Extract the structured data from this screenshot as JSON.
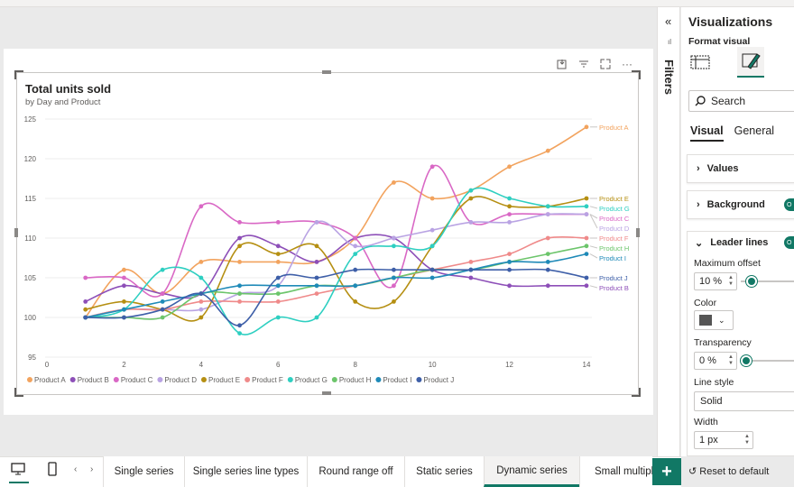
{
  "chart_data": {
    "type": "line",
    "title": "Total units sold",
    "subtitle": "by Day and Product",
    "x": [
      1,
      2,
      3,
      4,
      5,
      6,
      7,
      8,
      9,
      10,
      11,
      12,
      13,
      14
    ],
    "xticks": [
      0,
      2,
      4,
      6,
      8,
      10,
      12,
      14
    ],
    "yticks": [
      95,
      100,
      105,
      110,
      115,
      120,
      125
    ],
    "xlim": [
      0,
      14
    ],
    "ylim": [
      95,
      125
    ],
    "grid": "horizontal",
    "legend_position": "bottom",
    "series": [
      {
        "name": "Product A",
        "color": "#f2a35e",
        "values": [
          100,
          106,
          103,
          107,
          107,
          107,
          107,
          110,
          117,
          115,
          116,
          119,
          121,
          124
        ]
      },
      {
        "name": "Product B",
        "color": "#8d4fb8",
        "values": [
          102,
          104,
          103,
          103,
          110,
          109,
          107,
          110,
          110,
          106,
          105,
          104,
          104,
          104
        ]
      },
      {
        "name": "Product C",
        "color": "#d968c5",
        "values": [
          105,
          105,
          103,
          114,
          112,
          112,
          112,
          110,
          104,
          119,
          112,
          113,
          113,
          113
        ]
      },
      {
        "name": "Product D",
        "color": "#b9a3e3",
        "values": [
          100,
          101,
          101,
          101,
          103,
          104,
          112,
          109,
          110,
          111,
          112,
          112,
          113,
          113
        ]
      },
      {
        "name": "Product E",
        "color": "#b58f12",
        "values": [
          101,
          102,
          101,
          100,
          109,
          108,
          109,
          102,
          102,
          109,
          115,
          114,
          114,
          115
        ]
      },
      {
        "name": "Product F",
        "color": "#ef8a8a",
        "values": [
          100,
          101,
          101,
          102,
          102,
          102,
          103,
          104,
          105,
          106,
          107,
          108,
          110,
          110
        ]
      },
      {
        "name": "Product G",
        "color": "#2ecfc1",
        "values": [
          100,
          101,
          106,
          105,
          98,
          100,
          100,
          108,
          109,
          109,
          116,
          115,
          114,
          114
        ]
      },
      {
        "name": "Product H",
        "color": "#6cc56b",
        "values": [
          100,
          100,
          100,
          103,
          103,
          103,
          104,
          104,
          105,
          106,
          106,
          107,
          108,
          109
        ]
      },
      {
        "name": "Product I",
        "color": "#1f8ab8",
        "values": [
          100,
          101,
          102,
          103,
          104,
          104,
          104,
          104,
          105,
          105,
          106,
          107,
          107,
          108
        ]
      },
      {
        "name": "Product J",
        "color": "#3e5fa8",
        "values": [
          100,
          100,
          101,
          103,
          99,
          105,
          105,
          106,
          106,
          106,
          106,
          106,
          106,
          105
        ]
      }
    ]
  },
  "visual_toolbar": {
    "icons": [
      "pin-icon",
      "filter-icon",
      "focus-mode-icon",
      "more-options-icon"
    ],
    "more_label": "···"
  },
  "filters_pane": {
    "label": "Filters",
    "collapse": "«",
    "mini": "ıl"
  },
  "viz_pane": {
    "title": "Visualizations",
    "subtitle": "Format visual",
    "search_placeholder": "Search",
    "tabs": [
      "Visual",
      "General"
    ],
    "sections": {
      "values": "Values",
      "background": "Background",
      "leader_lines": "Leader lines",
      "toggle_on": "O"
    },
    "leader_lines": {
      "max_offset_label": "Maximum offset",
      "max_offset_value": "10 %",
      "max_offset_fraction": 0.1,
      "color_label": "Color",
      "color_value": "#555555",
      "transparency_label": "Transparency",
      "transparency_value": "0 %",
      "transparency_fraction": 0.0,
      "line_style_label": "Line style",
      "line_style_value": "Solid",
      "width_label": "Width",
      "width_value": "1 px"
    },
    "reset_label": "Reset to default"
  },
  "page_tabs": [
    {
      "label": "Single series",
      "active": false
    },
    {
      "label": "Single series line types",
      "active": false
    },
    {
      "label": "Round range off",
      "active": false
    },
    {
      "label": "Static series",
      "active": false
    },
    {
      "label": "Dynamic series",
      "active": true
    },
    {
      "label": "Small multiple",
      "active": false
    }
  ],
  "add_page_label": "+"
}
